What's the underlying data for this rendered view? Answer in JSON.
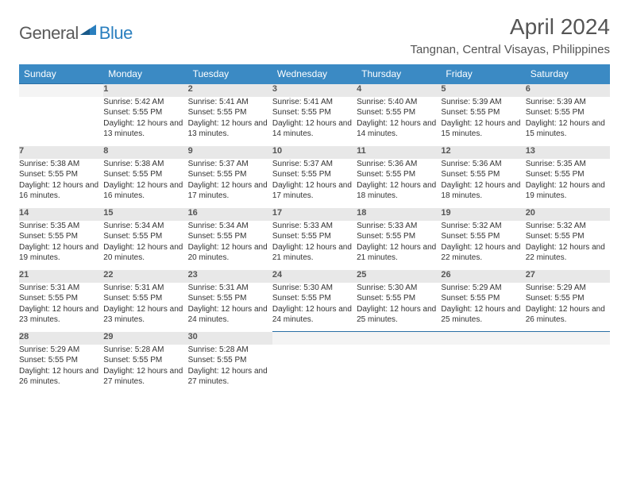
{
  "logo": {
    "text1": "General",
    "text2": "Blue"
  },
  "title": "April 2024",
  "location": "Tangnan, Central Visayas, Philippines",
  "colors": {
    "header_bg": "#3b8ac4",
    "header_text": "#ffffff",
    "daynum_bg": "#e8e8e8",
    "daynum_border": "#2a6fa5",
    "body_text": "#333333",
    "title_text": "#555555",
    "logo_gray": "#5a5a5a",
    "logo_blue": "#2a7fbf",
    "page_bg": "#ffffff"
  },
  "typography": {
    "title_fontsize": 28,
    "location_fontsize": 15,
    "header_fontsize": 12,
    "daynum_fontsize": 11,
    "cell_fontsize": 10
  },
  "layout": {
    "columns": 7,
    "rows": 5,
    "aspect": "792x612"
  },
  "weekdays": [
    "Sunday",
    "Monday",
    "Tuesday",
    "Wednesday",
    "Thursday",
    "Friday",
    "Saturday"
  ],
  "weeks": [
    {
      "nums": [
        "",
        "1",
        "2",
        "3",
        "4",
        "5",
        "6"
      ],
      "cells": [
        "",
        "Sunrise: 5:42 AM\nSunset: 5:55 PM\nDaylight: 12 hours and 13 minutes.",
        "Sunrise: 5:41 AM\nSunset: 5:55 PM\nDaylight: 12 hours and 13 minutes.",
        "Sunrise: 5:41 AM\nSunset: 5:55 PM\nDaylight: 12 hours and 14 minutes.",
        "Sunrise: 5:40 AM\nSunset: 5:55 PM\nDaylight: 12 hours and 14 minutes.",
        "Sunrise: 5:39 AM\nSunset: 5:55 PM\nDaylight: 12 hours and 15 minutes.",
        "Sunrise: 5:39 AM\nSunset: 5:55 PM\nDaylight: 12 hours and 15 minutes."
      ]
    },
    {
      "nums": [
        "7",
        "8",
        "9",
        "10",
        "11",
        "12",
        "13"
      ],
      "cells": [
        "Sunrise: 5:38 AM\nSunset: 5:55 PM\nDaylight: 12 hours and 16 minutes.",
        "Sunrise: 5:38 AM\nSunset: 5:55 PM\nDaylight: 12 hours and 16 minutes.",
        "Sunrise: 5:37 AM\nSunset: 5:55 PM\nDaylight: 12 hours and 17 minutes.",
        "Sunrise: 5:37 AM\nSunset: 5:55 PM\nDaylight: 12 hours and 17 minutes.",
        "Sunrise: 5:36 AM\nSunset: 5:55 PM\nDaylight: 12 hours and 18 minutes.",
        "Sunrise: 5:36 AM\nSunset: 5:55 PM\nDaylight: 12 hours and 18 minutes.",
        "Sunrise: 5:35 AM\nSunset: 5:55 PM\nDaylight: 12 hours and 19 minutes."
      ]
    },
    {
      "nums": [
        "14",
        "15",
        "16",
        "17",
        "18",
        "19",
        "20"
      ],
      "cells": [
        "Sunrise: 5:35 AM\nSunset: 5:55 PM\nDaylight: 12 hours and 19 minutes.",
        "Sunrise: 5:34 AM\nSunset: 5:55 PM\nDaylight: 12 hours and 20 minutes.",
        "Sunrise: 5:34 AM\nSunset: 5:55 PM\nDaylight: 12 hours and 20 minutes.",
        "Sunrise: 5:33 AM\nSunset: 5:55 PM\nDaylight: 12 hours and 21 minutes.",
        "Sunrise: 5:33 AM\nSunset: 5:55 PM\nDaylight: 12 hours and 21 minutes.",
        "Sunrise: 5:32 AM\nSunset: 5:55 PM\nDaylight: 12 hours and 22 minutes.",
        "Sunrise: 5:32 AM\nSunset: 5:55 PM\nDaylight: 12 hours and 22 minutes."
      ]
    },
    {
      "nums": [
        "21",
        "22",
        "23",
        "24",
        "25",
        "26",
        "27"
      ],
      "cells": [
        "Sunrise: 5:31 AM\nSunset: 5:55 PM\nDaylight: 12 hours and 23 minutes.",
        "Sunrise: 5:31 AM\nSunset: 5:55 PM\nDaylight: 12 hours and 23 minutes.",
        "Sunrise: 5:31 AM\nSunset: 5:55 PM\nDaylight: 12 hours and 24 minutes.",
        "Sunrise: 5:30 AM\nSunset: 5:55 PM\nDaylight: 12 hours and 24 minutes.",
        "Sunrise: 5:30 AM\nSunset: 5:55 PM\nDaylight: 12 hours and 25 minutes.",
        "Sunrise: 5:29 AM\nSunset: 5:55 PM\nDaylight: 12 hours and 25 minutes.",
        "Sunrise: 5:29 AM\nSunset: 5:55 PM\nDaylight: 12 hours and 26 minutes."
      ]
    },
    {
      "nums": [
        "28",
        "29",
        "30",
        "",
        "",
        "",
        ""
      ],
      "cells": [
        "Sunrise: 5:29 AM\nSunset: 5:55 PM\nDaylight: 12 hours and 26 minutes.",
        "Sunrise: 5:28 AM\nSunset: 5:55 PM\nDaylight: 12 hours and 27 minutes.",
        "Sunrise: 5:28 AM\nSunset: 5:55 PM\nDaylight: 12 hours and 27 minutes.",
        "",
        "",
        "",
        ""
      ]
    }
  ]
}
